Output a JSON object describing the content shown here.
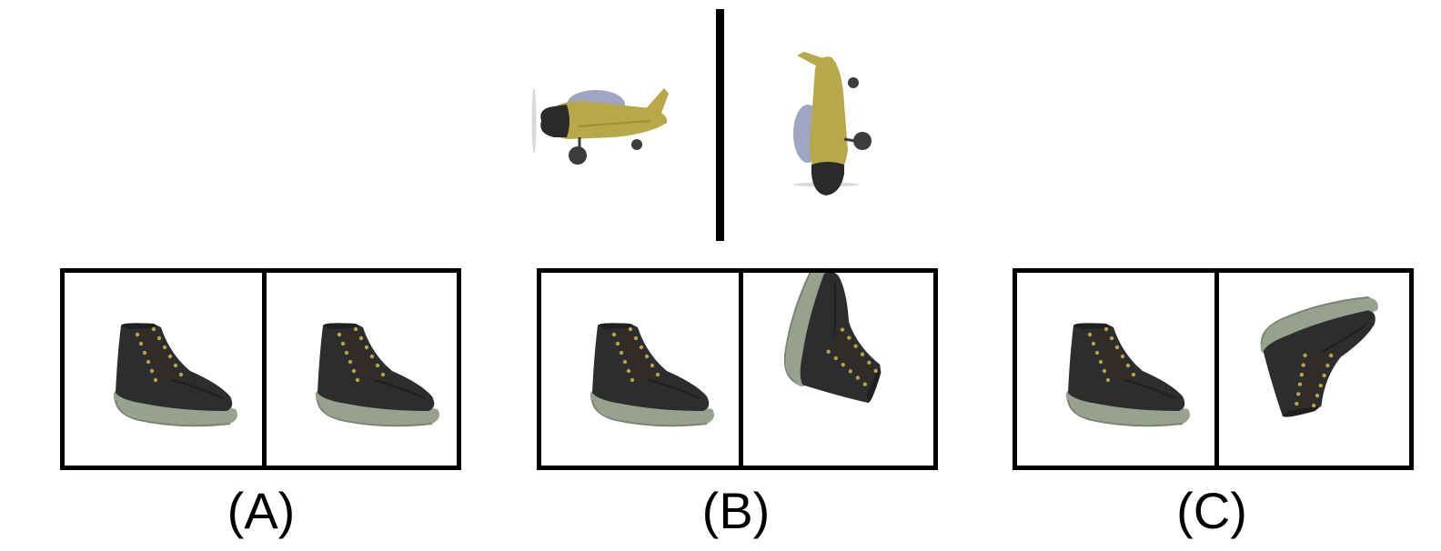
{
  "colors": {
    "frame": "#000000",
    "shoe_upper": "#2b2d2f",
    "shoe_upper_shade": "#1d1f21",
    "shoe_sole": "#9aa08e",
    "shoe_sole_dark": "#7c8373",
    "lace": "#3a2a1e",
    "eyelet": "#b7a34a",
    "plane_body": "#b7a849",
    "plane_body_shade": "#9c8f3a",
    "plane_canopy": "#9ea6c2",
    "plane_nose": "#2a2a2a",
    "plane_wheel": "#3c3c3c"
  },
  "reference": {
    "left_object": "toy-airplane",
    "right_object": "toy-airplane-rotated"
  },
  "options": [
    {
      "label": "(A)",
      "left": "boot",
      "right": "boot"
    },
    {
      "label": "(B)",
      "left": "boot",
      "right": "boot-rotated"
    },
    {
      "label": "(C)",
      "left": "boot",
      "right": "boot-flipped"
    }
  ]
}
